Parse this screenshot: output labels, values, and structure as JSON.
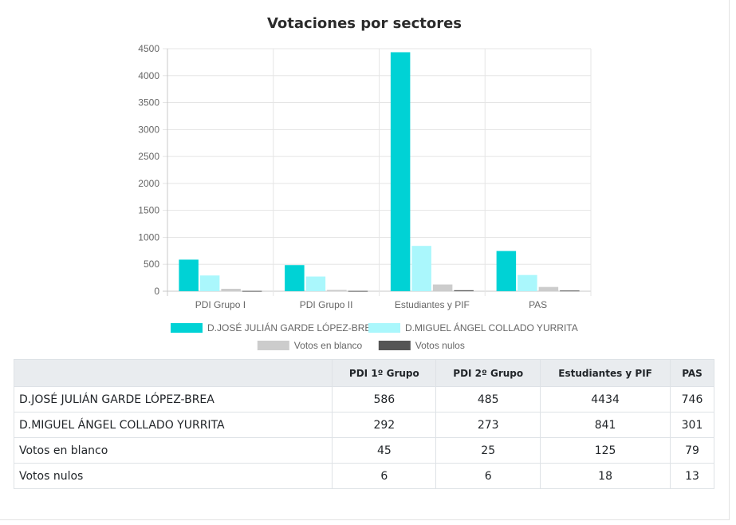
{
  "chart_data": {
    "type": "bar",
    "title": "Votaciones por sectores",
    "categories": [
      "PDI Grupo I",
      "PDI Grupo II",
      "Estudiantes y PIF",
      "PAS"
    ],
    "series": [
      {
        "name": "D.JOSÉ JULIÁN GARDE LÓPEZ-BREA",
        "color": "#00d2d5",
        "values": [
          586,
          485,
          4434,
          746
        ]
      },
      {
        "name": "D.MIGUEL ÁNGEL COLLADO YURRITA",
        "color": "#aaf7fc",
        "values": [
          292,
          273,
          841,
          301
        ]
      },
      {
        "name": "Votos en blanco",
        "color": "#cccccc",
        "values": [
          45,
          25,
          125,
          79
        ]
      },
      {
        "name": "Votos nulos",
        "color": "#555555",
        "values": [
          6,
          6,
          18,
          13
        ]
      }
    ],
    "ylim": [
      0,
      4500
    ],
    "yticks": [
      0,
      500,
      1000,
      1500,
      2000,
      2500,
      3000,
      3500,
      4000,
      4500
    ],
    "grid": true,
    "legend": "bottom"
  },
  "table": {
    "headers": [
      "",
      "PDI 1º Grupo",
      "PDI 2º Grupo",
      "Estudiantes y PIF",
      "PAS"
    ],
    "rows": [
      [
        "D.JOSÉ JULIÁN GARDE LÓPEZ-BREA",
        "586",
        "485",
        "4434",
        "746"
      ],
      [
        "D.MIGUEL ÁNGEL COLLADO YURRITA",
        "292",
        "273",
        "841",
        "301"
      ],
      [
        "Votos en blanco",
        "45",
        "25",
        "125",
        "79"
      ],
      [
        "Votos nulos",
        "6",
        "6",
        "18",
        "13"
      ]
    ]
  }
}
